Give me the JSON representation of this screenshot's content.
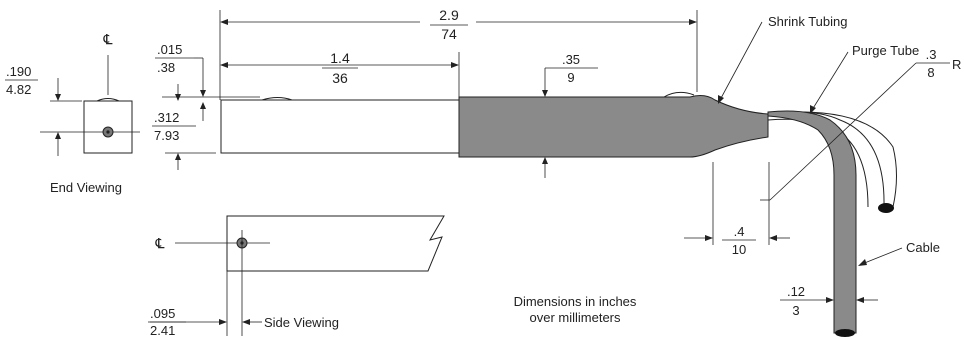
{
  "dimensions": {
    "overall_length": {
      "inches": "2.9",
      "mm": "74"
    },
    "tip_length": {
      "inches": "1.4",
      "mm": "36"
    },
    "tubing_diameter": {
      "inches": ".35",
      "mm": "9"
    },
    "groove_depth": {
      "inches": ".015",
      "mm": ".38"
    },
    "probe_diameter": {
      "inches": ".312",
      "mm": "7.93"
    },
    "end_offset": {
      "inches": ".190",
      "mm": "4.82"
    },
    "bend_radius": {
      "inches": ".3",
      "mm": "8",
      "suffix": "R"
    },
    "bend_offset": {
      "inches": ".4",
      "mm": "10"
    },
    "cable_diameter": {
      "inches": ".12",
      "mm": "3"
    },
    "side_offset": {
      "inches": ".095",
      "mm": "2.41"
    }
  },
  "labels": {
    "centerline": "℄",
    "end_viewing": "End Viewing",
    "side_viewing": "Side Viewing",
    "shrink_tubing": "Shrink Tubing",
    "purge_tube": "Purge Tube",
    "cable": "Cable",
    "note_line1": "Dimensions in inches",
    "note_line2": "over millimeters"
  },
  "colors": {
    "tubing_fill": "#8a8a8a",
    "line": "#222222"
  }
}
